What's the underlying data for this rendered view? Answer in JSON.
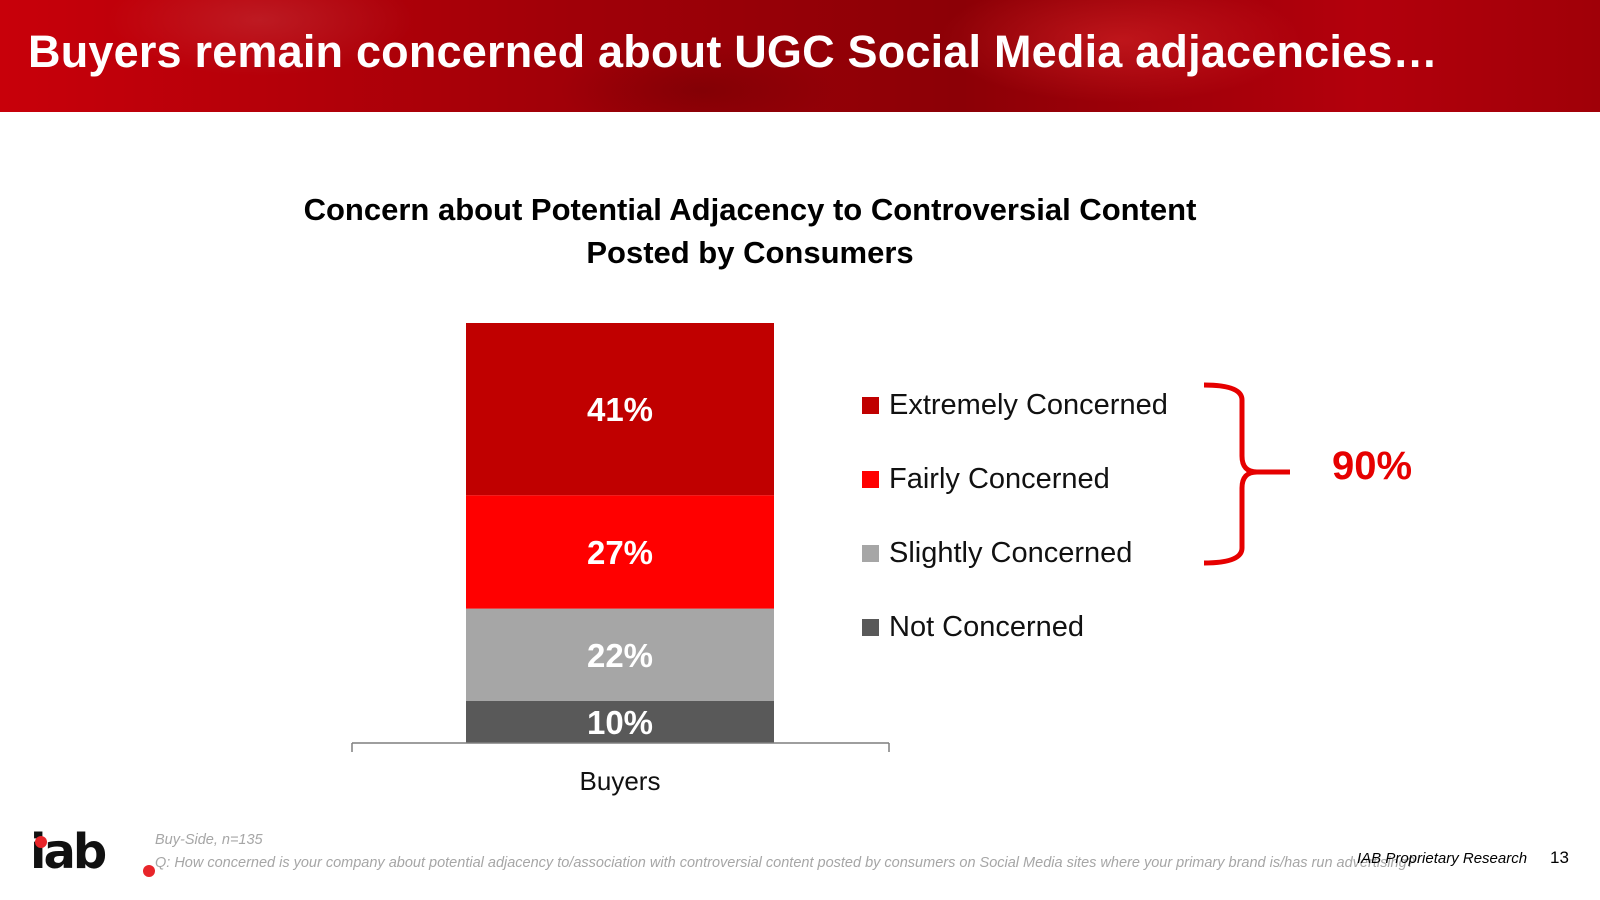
{
  "header": {
    "title": "Buyers remain concerned about UGC Social Media adjacencies…"
  },
  "chart_data": {
    "type": "bar",
    "stacked": true,
    "title_line1": "Concern about Potential Adjacency to Controversial Content",
    "title_line2": "Posted by Consumers",
    "categories": [
      "Buyers"
    ],
    "series": [
      {
        "name": "Not Concerned",
        "values": [
          10
        ],
        "label": "10%",
        "color": "#595959"
      },
      {
        "name": "Slightly Concerned",
        "values": [
          22
        ],
        "label": "22%",
        "color": "#a6a6a6"
      },
      {
        "name": "Fairly Concerned",
        "values": [
          27
        ],
        "label": "27%",
        "color": "#ff0000"
      },
      {
        "name": "Extremely Concerned",
        "values": [
          41
        ],
        "label": "41%",
        "color": "#c00000"
      }
    ],
    "legend": [
      "Extremely Concerned",
      "Fairly Concerned",
      "Slightly Concerned",
      "Not Concerned"
    ],
    "legend_placement": "right",
    "ylim": [
      0,
      100
    ],
    "grid": false,
    "bracket": {
      "label": "90%",
      "covers": [
        "Extremely Concerned",
        "Fairly Concerned",
        "Slightly Concerned"
      ],
      "color": "#e60000"
    }
  },
  "footer": {
    "source": "Buy-Side, n=135",
    "question": "Q: How concerned is your company about potential adjacency to/association with controversial content posted by consumers on Social Media sites where your primary brand is/has run advertising?",
    "label": "IAB Proprietary Research",
    "page_number": "13"
  },
  "logo": {
    "text": "iab",
    "accent_color": "#e8252a"
  }
}
